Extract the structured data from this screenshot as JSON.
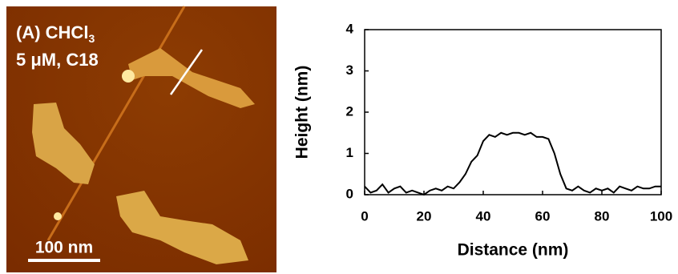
{
  "image": {
    "label": "(A) CHCl",
    "label_subscript": "3",
    "sample": "5 μM, C18",
    "scale_bar": "100 nm"
  },
  "chart_data": {
    "type": "line",
    "xlabel": "Distance (nm)",
    "ylabel": "Height (nm)",
    "x": [
      0,
      2,
      4,
      6,
      8,
      10,
      12,
      14,
      16,
      18,
      20,
      22,
      24,
      26,
      28,
      30,
      32,
      34,
      36,
      38,
      40,
      42,
      44,
      46,
      48,
      50,
      52,
      54,
      56,
      58,
      60,
      62,
      64,
      66,
      68,
      70,
      72,
      74,
      76,
      78,
      80,
      82,
      84,
      86,
      88,
      90,
      92,
      94,
      96,
      98,
      100
    ],
    "values": [
      0.2,
      0.05,
      0.1,
      0.25,
      0.05,
      0.15,
      0.2,
      0.05,
      0.1,
      0.05,
      0.0,
      0.1,
      0.15,
      0.1,
      0.2,
      0.15,
      0.3,
      0.5,
      0.8,
      0.95,
      1.3,
      1.45,
      1.4,
      1.5,
      1.45,
      1.5,
      1.5,
      1.45,
      1.5,
      1.4,
      1.4,
      1.35,
      1.0,
      0.5,
      0.15,
      0.1,
      0.2,
      0.1,
      0.05,
      0.15,
      0.1,
      0.15,
      0.05,
      0.2,
      0.15,
      0.1,
      0.2,
      0.15,
      0.15,
      0.2,
      0.2
    ],
    "color": "#000000",
    "xlim": [
      0,
      100
    ],
    "xticks": [
      0,
      20,
      40,
      60,
      80,
      100
    ],
    "ylim": [
      0,
      4
    ],
    "yticks": [
      0,
      1,
      2,
      3,
      4
    ],
    "grid": false
  }
}
